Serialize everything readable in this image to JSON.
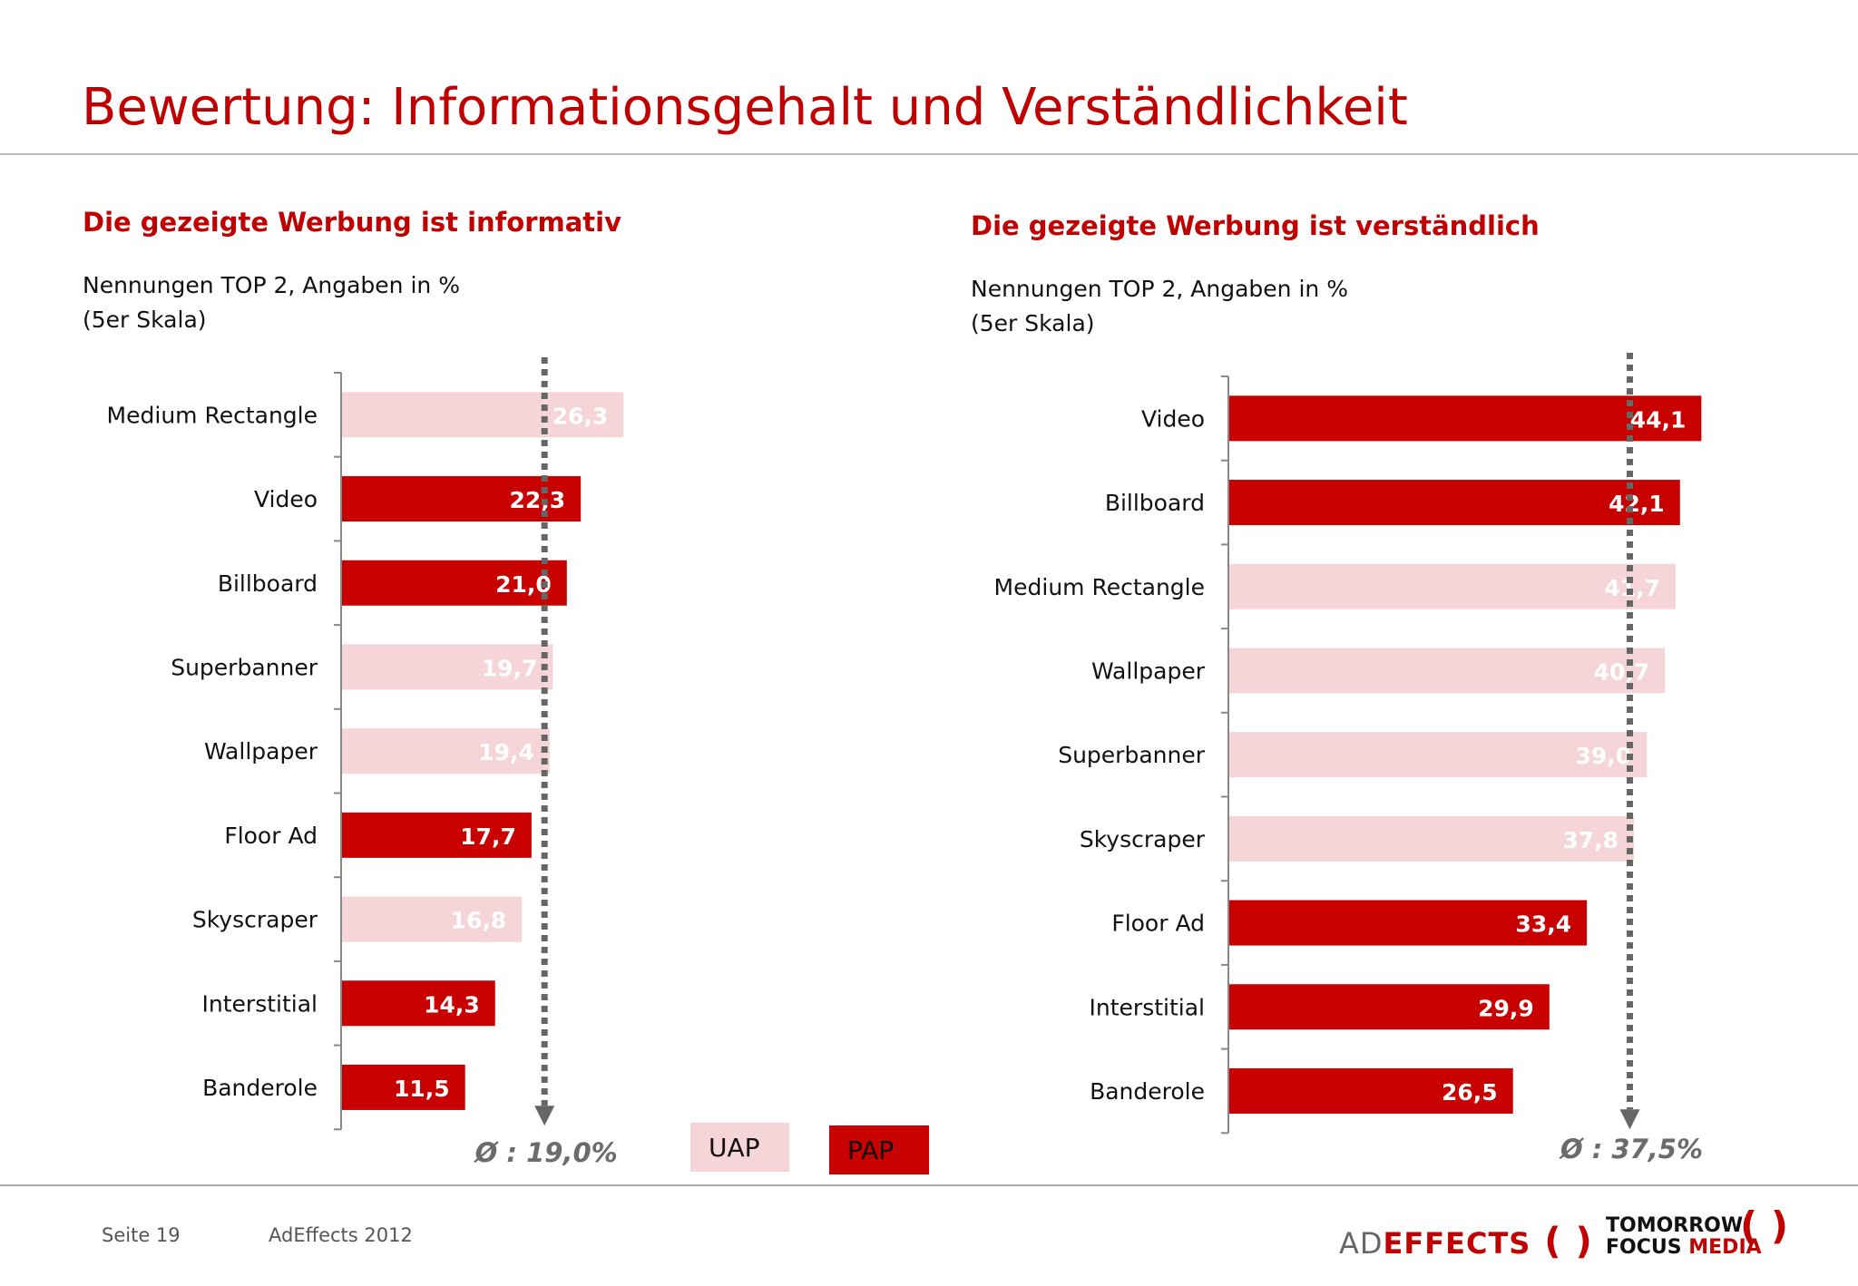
{
  "title": "Bewertung: Informationsgehalt und Verständlichkeit",
  "colors": {
    "UAP": "#f5d5d8",
    "PAP": "#c80000",
    "avg_line": "#666666",
    "title": "#c00000"
  },
  "legend": [
    {
      "key": "UAP",
      "label": "UAP"
    },
    {
      "key": "PAP",
      "label": "PAP"
    }
  ],
  "chart_data": [
    {
      "type": "bar",
      "orientation": "horizontal",
      "title": "Die gezeigte Werbung ist informativ",
      "subtitle_line1": "Nennungen TOP 2, Angaben in %",
      "subtitle_line2": "(5er Skala)",
      "categories": [
        "Medium Rectangle",
        "Video",
        "Billboard",
        "Superbanner",
        "Wallpaper",
        "Floor Ad",
        "Skyscraper",
        "Interstitial",
        "Banderole"
      ],
      "values": [
        26.3,
        22.3,
        21.0,
        19.7,
        19.4,
        17.7,
        16.8,
        14.3,
        11.5
      ],
      "labels": [
        "26,3",
        "22,3",
        "21,0",
        "19,7",
        "19,4",
        "17,7",
        "16,8",
        "14,3",
        "11,5"
      ],
      "groups": [
        "UAP",
        "PAP",
        "PAP",
        "UAP",
        "UAP",
        "PAP",
        "UAP",
        "PAP",
        "PAP"
      ],
      "average": 19.0,
      "average_label": "Ø : 19,0%"
    },
    {
      "type": "bar",
      "orientation": "horizontal",
      "title": "Die gezeigte Werbung ist verständlich",
      "subtitle_line1": "Nennungen TOP 2, Angaben in %",
      "subtitle_line2": "(5er Skala)",
      "categories": [
        "Video",
        "Billboard",
        "Medium Rectangle",
        "Wallpaper",
        "Superbanner",
        "Skyscraper",
        "Floor Ad",
        "Interstitial",
        "Banderole"
      ],
      "values": [
        44.1,
        42.1,
        41.7,
        40.7,
        39.0,
        37.8,
        33.4,
        29.9,
        26.5
      ],
      "labels": [
        "44,1",
        "42,1",
        "41,7",
        "40,7",
        "39,0",
        "37,8",
        "33,4",
        "29,9",
        "26,5"
      ],
      "groups": [
        "PAP",
        "PAP",
        "UAP",
        "UAP",
        "UAP",
        "UAP",
        "PAP",
        "PAP",
        "PAP"
      ],
      "average": 37.5,
      "average_label": "Ø : 37,5%"
    }
  ],
  "footer": {
    "page": "Seite 19",
    "source": "AdEffects 2012"
  },
  "logos": {
    "adeffects": "AD EFFECTS",
    "tomorrow_focus": "TOMORROW FOCUS MEDIA"
  }
}
